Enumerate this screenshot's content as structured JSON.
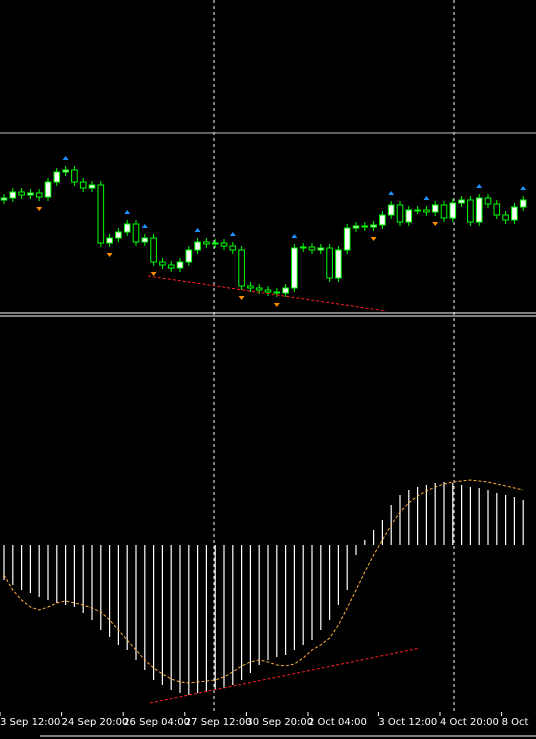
{
  "chart_data": [
    {
      "type": "candlestick",
      "open": [
        112,
        114,
        120,
        117,
        119,
        115,
        130,
        140,
        142,
        130,
        124,
        127,
        69,
        74,
        80,
        88,
        70,
        74,
        50,
        47,
        44,
        50,
        62,
        70,
        68,
        69,
        66,
        62,
        26,
        24,
        22,
        20,
        19,
        24,
        64,
        65,
        62,
        64,
        34,
        62,
        84,
        86,
        85,
        87,
        97,
        107,
        90,
        102,
        102,
        100,
        107,
        94,
        109,
        112,
        90,
        114,
        108,
        97,
        92,
        105
      ],
      "high": [
        118,
        124,
        124,
        123,
        123,
        134,
        144,
        146,
        146,
        134,
        131,
        131,
        78,
        84,
        92,
        92,
        78,
        78,
        54,
        51,
        54,
        66,
        74,
        74,
        73,
        73,
        70,
        66,
        30,
        28,
        26,
        24,
        28,
        68,
        69,
        69,
        68,
        68,
        66,
        88,
        90,
        90,
        91,
        101,
        111,
        111,
        106,
        106,
        106,
        111,
        111,
        113,
        116,
        116,
        118,
        118,
        112,
        101,
        109,
        116
      ],
      "low": [
        108,
        110,
        113,
        113,
        111,
        111,
        126,
        136,
        126,
        120,
        120,
        65,
        65,
        70,
        76,
        66,
        66,
        46,
        43,
        40,
        40,
        46,
        58,
        64,
        64,
        62,
        58,
        22,
        20,
        18,
        16,
        15,
        15,
        20,
        60,
        58,
        58,
        30,
        30,
        58,
        80,
        81,
        81,
        83,
        93,
        86,
        86,
        98,
        96,
        96,
        90,
        90,
        105,
        86,
        86,
        104,
        93,
        88,
        88,
        101
      ],
      "close": [
        114,
        120,
        117,
        119,
        115,
        130,
        140,
        142,
        130,
        124,
        127,
        69,
        74,
        80,
        88,
        70,
        74,
        50,
        47,
        44,
        50,
        62,
        70,
        68,
        69,
        66,
        62,
        26,
        24,
        22,
        20,
        19,
        24,
        64,
        65,
        62,
        64,
        34,
        62,
        84,
        86,
        85,
        87,
        97,
        107,
        90,
        102,
        102,
        100,
        107,
        94,
        109,
        112,
        90,
        114,
        108,
        97,
        92,
        105,
        112
      ],
      "ylim": [
        0,
        312
      ],
      "level": 179,
      "up_color": "#ffffff",
      "down_color": "#000000",
      "wick_color": "#00ff00",
      "level_color": "#c0c0c0",
      "fractals_up": [
        7,
        14,
        16,
        22,
        26,
        33,
        44,
        48,
        54,
        59
      ],
      "fractal_up_color": "#1e90ff",
      "fractals_down": [
        4,
        12,
        17,
        27,
        31,
        42,
        49
      ],
      "fractal_down_color": "#ff8c00"
    },
    {
      "type": "macd",
      "categories": [
        "3 Sep 12:00",
        null,
        null,
        null,
        null,
        null,
        null,
        "24 Sep 20:00",
        null,
        null,
        null,
        null,
        null,
        null,
        "26 Sep 04:00",
        null,
        null,
        null,
        null,
        null,
        null,
        "27 Sep 12:00",
        null,
        null,
        null,
        null,
        null,
        null,
        "30 Sep 20:00",
        null,
        null,
        null,
        null,
        null,
        null,
        "2 Oct 04:00",
        null,
        null,
        null,
        null,
        null,
        null,
        null,
        "3 Oct 12:00",
        null,
        null,
        null,
        null,
        null,
        null,
        "4 Oct 20:00",
        null,
        null,
        null,
        null,
        null,
        null,
        "8 Oct",
        null,
        null
      ],
      "values": [
        -35,
        -40,
        -45,
        -48,
        -52,
        -55,
        -58,
        -60,
        -62,
        -68,
        -75,
        -85,
        -92,
        -100,
        -105,
        -115,
        -125,
        -135,
        -140,
        -145,
        -148,
        -150,
        -148,
        -146,
        -145,
        -143,
        -140,
        -135,
        -128,
        -120,
        -115,
        -112,
        -110,
        -105,
        -100,
        -95,
        -85,
        -75,
        -60,
        -45,
        -10,
        5,
        15,
        25,
        40,
        50,
        55,
        58,
        60,
        62,
        63,
        62,
        60,
        58,
        57,
        55,
        52,
        50,
        48,
        45
      ],
      "signal": [
        -30,
        -45,
        -55,
        -62,
        -65,
        -62,
        -58,
        -56,
        -58,
        -60,
        -63,
        -67,
        -75,
        -85,
        -95,
        -105,
        -115,
        -123,
        -129,
        -134,
        -137,
        -138,
        -137,
        -136,
        -135,
        -132,
        -127,
        -121,
        -117,
        -115,
        -117,
        -120,
        -121,
        -119,
        -113,
        -105,
        -100,
        -93,
        -80,
        -63,
        -45,
        -27,
        -10,
        5,
        20,
        33,
        42,
        49,
        54,
        58,
        61,
        63,
        64,
        65,
        64,
        63,
        61,
        59,
        57,
        55
      ],
      "ylim": [
        -167,
        229
      ],
      "color": "#ffffff",
      "signal_color": "#ffb040"
    }
  ]
}
